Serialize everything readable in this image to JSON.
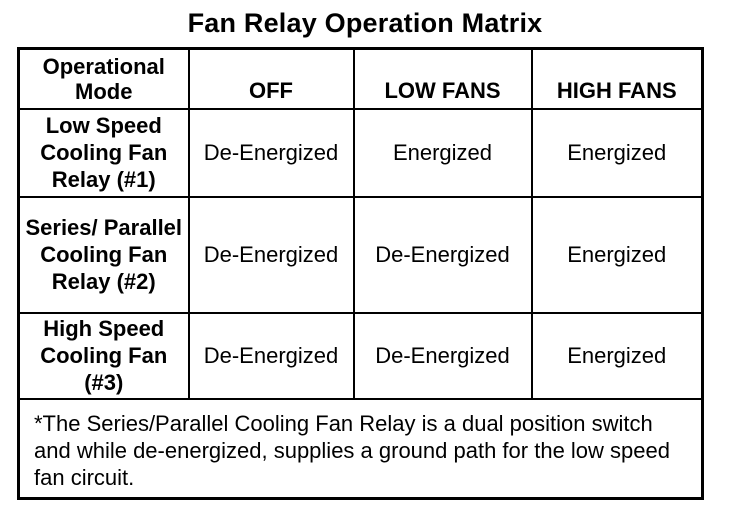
{
  "title": "Fan Relay Operation Matrix",
  "table": {
    "corner_header": "Operational Mode",
    "columns": [
      "OFF",
      "LOW FANS",
      "HIGH FANS"
    ],
    "rows": [
      {
        "label": "Low Speed Cooling Fan Relay (#1)",
        "values": [
          "De-Energized",
          "Energized",
          "Energized"
        ]
      },
      {
        "label": "Series/ Parallel Cooling Fan Relay (#2)",
        "values": [
          "De-Energized",
          "De-Energized",
          "Energized"
        ]
      },
      {
        "label": "High Speed Cooling Fan (#3)",
        "values": [
          "De-Energized",
          "De-Energized",
          "Energized"
        ]
      }
    ],
    "footnote": "*The Series/Parallel Cooling Fan Relay is a dual position switch and while de-energized, supplies a ground path for the low speed fan circuit."
  }
}
